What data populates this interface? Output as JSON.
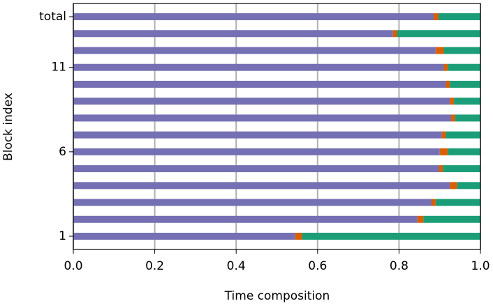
{
  "chart_data": {
    "type": "stacked-barh",
    "xlabel": "Time composition",
    "ylabel": "Block index",
    "categories": [
      "1",
      null,
      null,
      null,
      null,
      "6",
      null,
      null,
      null,
      null,
      "11",
      null,
      null,
      "total"
    ],
    "series": [
      {
        "color": "#7570b3",
        "values": [
          0.545,
          0.845,
          0.88,
          0.925,
          0.898,
          0.9,
          0.905,
          0.928,
          0.925,
          0.915,
          0.91,
          0.89,
          0.785,
          0.885
        ]
      },
      {
        "color": "#d95f02",
        "values": [
          0.017,
          0.015,
          0.01,
          0.018,
          0.01,
          0.02,
          0.01,
          0.01,
          0.01,
          0.01,
          0.01,
          0.02,
          0.01,
          0.012
        ]
      },
      {
        "color": "#1b9e77",
        "values": [
          0.438,
          0.14,
          0.11,
          0.057,
          0.092,
          0.08,
          0.085,
          0.062,
          0.065,
          0.075,
          0.08,
          0.09,
          0.205,
          0.103
        ]
      }
    ],
    "xlim": [
      0,
      1
    ],
    "xticks": [
      {
        "value": 0,
        "label": "0.0"
      },
      0.2,
      0.4,
      0.6,
      0.8,
      {
        "value": 1,
        "label": "1.0"
      }
    ],
    "grid": true,
    "grid_color": "#b0b0b0"
  }
}
